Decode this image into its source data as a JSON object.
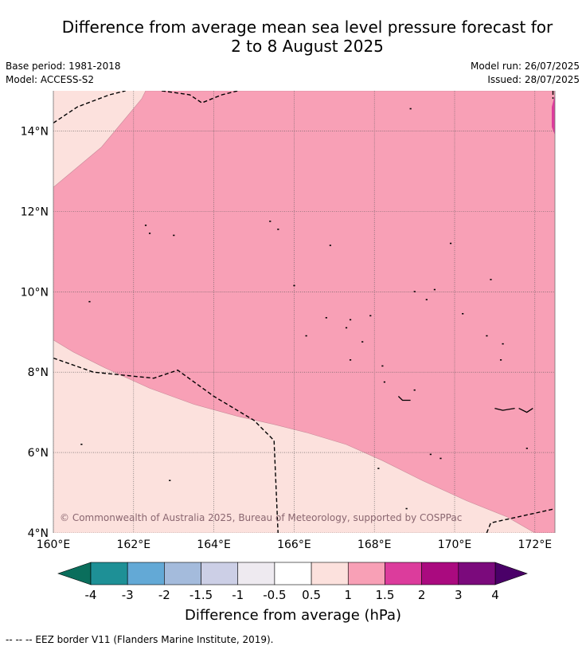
{
  "title": {
    "line1": "Difference from average mean sea level pressure forecast for",
    "line2": "2 to 8 August 2025"
  },
  "meta": {
    "base_period": "Base period: 1981-2018",
    "model": "Model: ACCESS-S2",
    "model_run": "Model run: 26/07/2025",
    "issued": "Issued: 28/07/2025"
  },
  "map": {
    "lon_range": [
      160,
      172.5
    ],
    "lat_range": [
      4,
      15
    ],
    "lon_ticks": [
      {
        "value": 160,
        "label": "160°E"
      },
      {
        "value": 162,
        "label": "162°E"
      },
      {
        "value": 164,
        "label": "164°E"
      },
      {
        "value": 166,
        "label": "166°E"
      },
      {
        "value": 168,
        "label": "168°E"
      },
      {
        "value": 170,
        "label": "170°E"
      },
      {
        "value": 172,
        "label": "172°E"
      }
    ],
    "lat_ticks": [
      {
        "value": 4,
        "label": "4°N"
      },
      {
        "value": 6,
        "label": "6°N"
      },
      {
        "value": 8,
        "label": "8°N"
      },
      {
        "value": 10,
        "label": "10°N"
      },
      {
        "value": 12,
        "label": "12°N"
      },
      {
        "value": 14,
        "label": "14°N"
      }
    ],
    "copyright": "© Commonwealth of Australia 2025, Bureau of Meteorology, supported by COSPPac",
    "fields": {
      "band_0_5_to_1": "#fce1dd",
      "band_1_to_1_5": "#f8a0b6",
      "band_1_5_to_2": "#dc3c9c"
    },
    "zone_1_to_1_5": [
      [
        160,
        12.6
      ],
      [
        161.2,
        13.6
      ],
      [
        162.2,
        14.8
      ],
      [
        162.3,
        15
      ],
      [
        172.5,
        15
      ],
      [
        172.5,
        4
      ],
      [
        172,
        4
      ],
      [
        171.3,
        4.4
      ],
      [
        170.3,
        4.8
      ],
      [
        169.2,
        5.3
      ],
      [
        168.2,
        5.8
      ],
      [
        167.3,
        6.2
      ],
      [
        166.3,
        6.5
      ],
      [
        165.5,
        6.7
      ],
      [
        164.6,
        6.9
      ],
      [
        163.5,
        7.2
      ],
      [
        162.4,
        7.6
      ],
      [
        161.3,
        8.1
      ],
      [
        160.5,
        8.5
      ],
      [
        160,
        8.8
      ]
    ],
    "zone_1_5_to_2": [
      [
        172.5,
        14.9
      ],
      [
        172.42,
        14.6
      ],
      [
        172.42,
        14.1
      ],
      [
        172.5,
        13.9
      ]
    ],
    "eez_lines": [
      [
        [
          160,
          14.2
        ],
        [
          160.6,
          14.6
        ],
        [
          161.4,
          14.9
        ],
        [
          161.8,
          15
        ]
      ],
      [
        [
          162.7,
          15
        ],
        [
          163.4,
          14.9
        ],
        [
          163.7,
          14.7
        ],
        [
          164.2,
          14.9
        ],
        [
          164.6,
          15
        ]
      ],
      [
        [
          160,
          8.35
        ],
        [
          161,
          8
        ],
        [
          162.5,
          7.85
        ],
        [
          163.1,
          8.05
        ],
        [
          164,
          7.4
        ],
        [
          165,
          6.8
        ],
        [
          165.5,
          6.3
        ],
        [
          165.6,
          4
        ]
      ],
      [
        [
          170.8,
          4
        ],
        [
          170.9,
          4.25
        ],
        [
          172.5,
          4.6
        ]
      ],
      [
        [
          172.45,
          15
        ],
        [
          172.45,
          14.8
        ]
      ]
    ],
    "islands": [
      [
        162.3,
        11.65
      ],
      [
        162.4,
        11.45
      ],
      [
        163.0,
        11.4
      ],
      [
        165.4,
        11.75
      ],
      [
        165.6,
        11.55
      ],
      [
        166.9,
        11.15
      ],
      [
        168.9,
        14.55
      ],
      [
        169.9,
        11.2
      ],
      [
        160.9,
        9.75
      ],
      [
        166.0,
        10.15
      ],
      [
        169.0,
        10.0
      ],
      [
        169.3,
        9.8
      ],
      [
        169.5,
        10.05
      ],
      [
        170.2,
        9.45
      ],
      [
        170.9,
        10.3
      ],
      [
        167.9,
        9.4
      ],
      [
        167.4,
        9.3
      ],
      [
        166.8,
        9.35
      ],
      [
        167.3,
        9.1
      ],
      [
        166.3,
        8.9
      ],
      [
        167.7,
        8.75
      ],
      [
        167.4,
        8.3
      ],
      [
        171.2,
        8.7
      ],
      [
        171.15,
        8.3
      ],
      [
        170.8,
        8.9
      ],
      [
        168.2,
        8.15
      ],
      [
        168.25,
        7.75
      ],
      [
        169.0,
        7.55
      ],
      [
        160.7,
        6.2
      ],
      [
        162.9,
        5.3
      ],
      [
        168.1,
        5.6
      ],
      [
        169.4,
        5.95
      ],
      [
        169.65,
        5.85
      ],
      [
        171.8,
        6.1
      ],
      [
        168.8,
        4.6
      ]
    ],
    "atolls": [
      [
        [
          168.6,
          7.4
        ],
        [
          168.7,
          7.3
        ],
        [
          168.9,
          7.3
        ]
      ],
      [
        [
          171.0,
          7.1
        ],
        [
          171.2,
          7.05
        ],
        [
          171.5,
          7.1
        ]
      ],
      [
        [
          171.6,
          7.1
        ],
        [
          171.8,
          7.0
        ],
        [
          171.95,
          7.1
        ]
      ]
    ]
  },
  "colorbar": {
    "label": "Difference from average (hPa)",
    "tick_labels": [
      "-4",
      "-3",
      "-2",
      "-1.5",
      "-1",
      "-0.5",
      "0.5",
      "1",
      "1.5",
      "2",
      "3",
      "4"
    ],
    "low_extend_color": "#0a6e5c",
    "high_extend_color": "#4a0068",
    "colors": [
      "#1e9096",
      "#63a9d6",
      "#a4bbdc",
      "#cccfe6",
      "#eeeaf0",
      "#ffffff",
      "#fce1dd",
      "#f8a0b6",
      "#dc3c9c",
      "#aa0a7f",
      "#7b0a7c"
    ]
  },
  "footer": "--  --  -- EEZ border V11 (Flanders Marine Institute, 2019)."
}
